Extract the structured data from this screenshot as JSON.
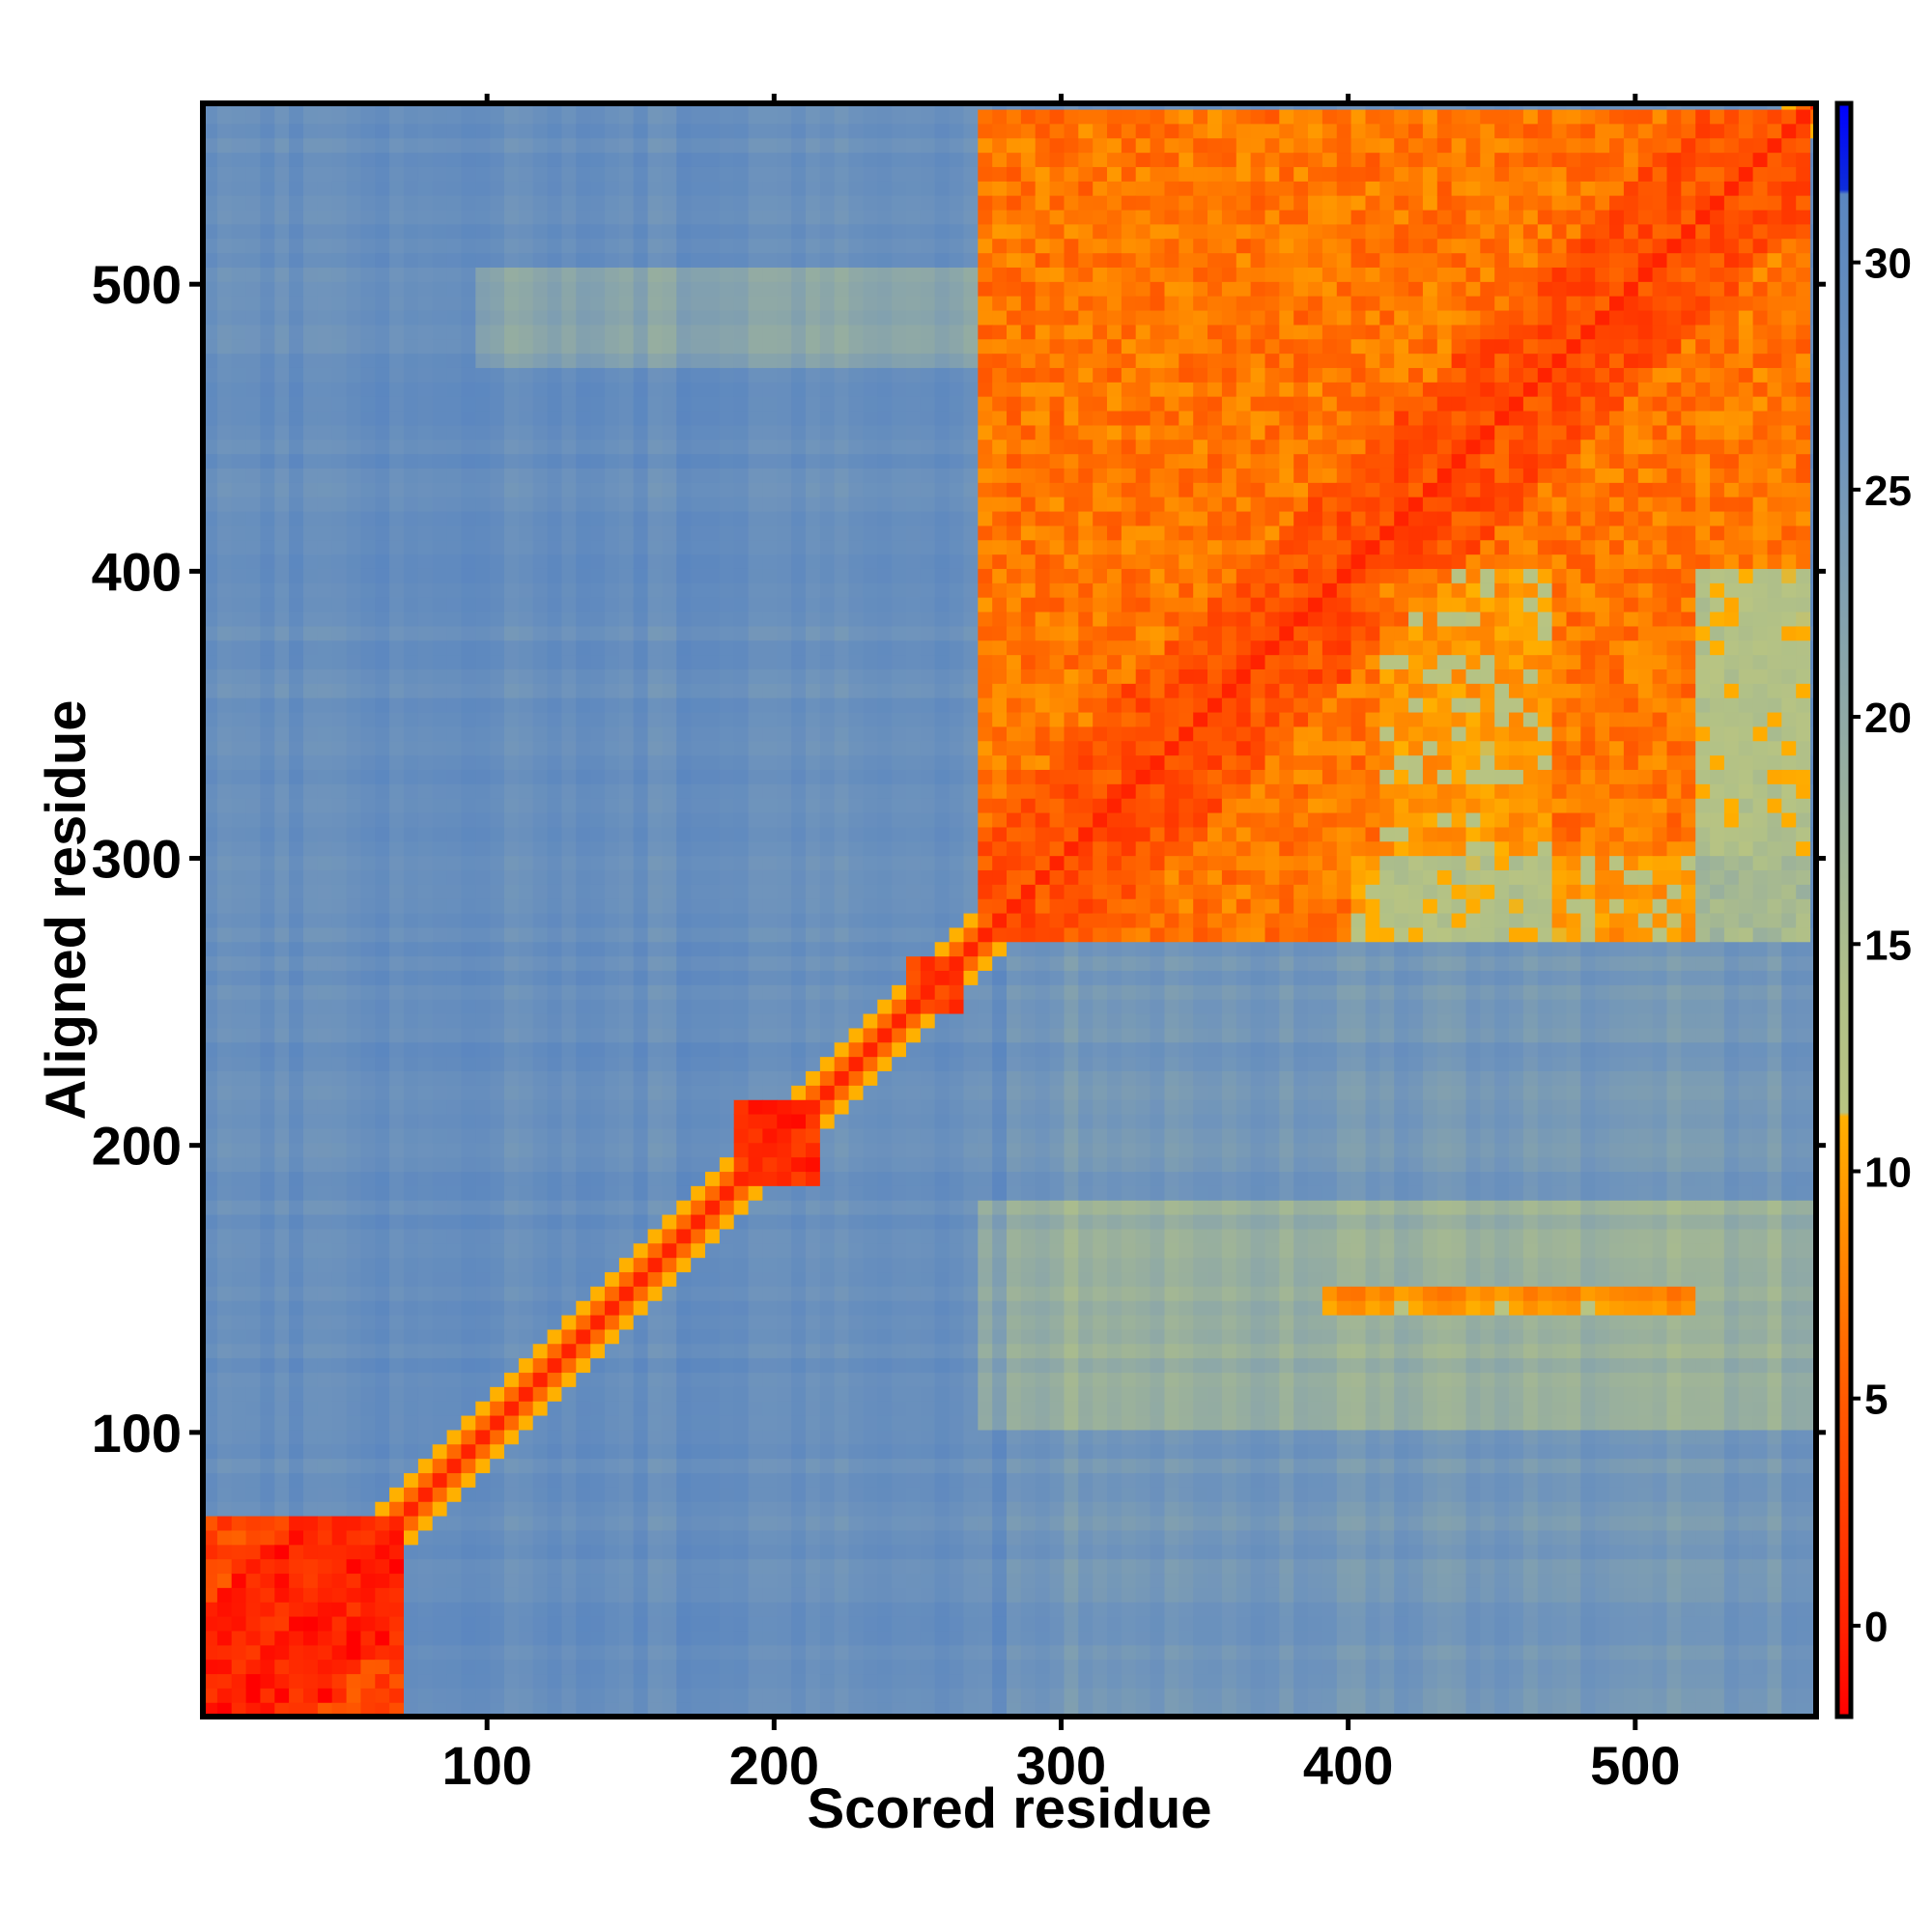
{
  "chart_data": {
    "type": "heatmap",
    "title": "",
    "xlabel": "Scored residue",
    "ylabel": "Aligned residue",
    "xlim": [
      1,
      563
    ],
    "ylim": [
      1,
      563
    ],
    "x_ticks": [
      100,
      200,
      300,
      400,
      500
    ],
    "y_ticks": [
      100,
      200,
      300,
      400,
      500
    ],
    "colorbar": {
      "ticks": [
        0,
        5,
        10,
        15,
        20,
        25,
        30
      ],
      "range": [
        -2,
        33.5
      ],
      "stops": [
        {
          "value": -2,
          "color": "#ff0000"
        },
        {
          "value": 0,
          "color": "#ff2200"
        },
        {
          "value": 5,
          "color": "#ff5a00"
        },
        {
          "value": 10,
          "color": "#ffa000"
        },
        {
          "value": 11.2,
          "color": "#ffb000"
        },
        {
          "value": 11.3,
          "color": "#b8c482"
        },
        {
          "value": 14,
          "color": "#b0c088"
        },
        {
          "value": 20,
          "color": "#8fa9a6"
        },
        {
          "value": 26,
          "color": "#6f94bc"
        },
        {
          "value": 31.5,
          "color": "#5a86c0"
        },
        {
          "value": 31.6,
          "color": "#0d2dd9"
        },
        {
          "value": 33.5,
          "color": "#0000ff"
        }
      ]
    },
    "regions": [
      {
        "name": "diagonal",
        "value": 0
      },
      {
        "name": "block-1-70",
        "x": [
          1,
          70
        ],
        "y": [
          1,
          70
        ],
        "value": 3
      },
      {
        "name": "block-190-215",
        "x": [
          188,
          215
        ],
        "y": [
          188,
          215
        ],
        "value": 4
      },
      {
        "name": "block-245-265",
        "x": [
          245,
          268
        ],
        "y": [
          245,
          268
        ],
        "value": 5
      },
      {
        "name": "block-270-560",
        "x": [
          270,
          560
        ],
        "y": [
          270,
          560
        ],
        "value": 7
      },
      {
        "name": "background",
        "value": 28
      }
    ]
  }
}
